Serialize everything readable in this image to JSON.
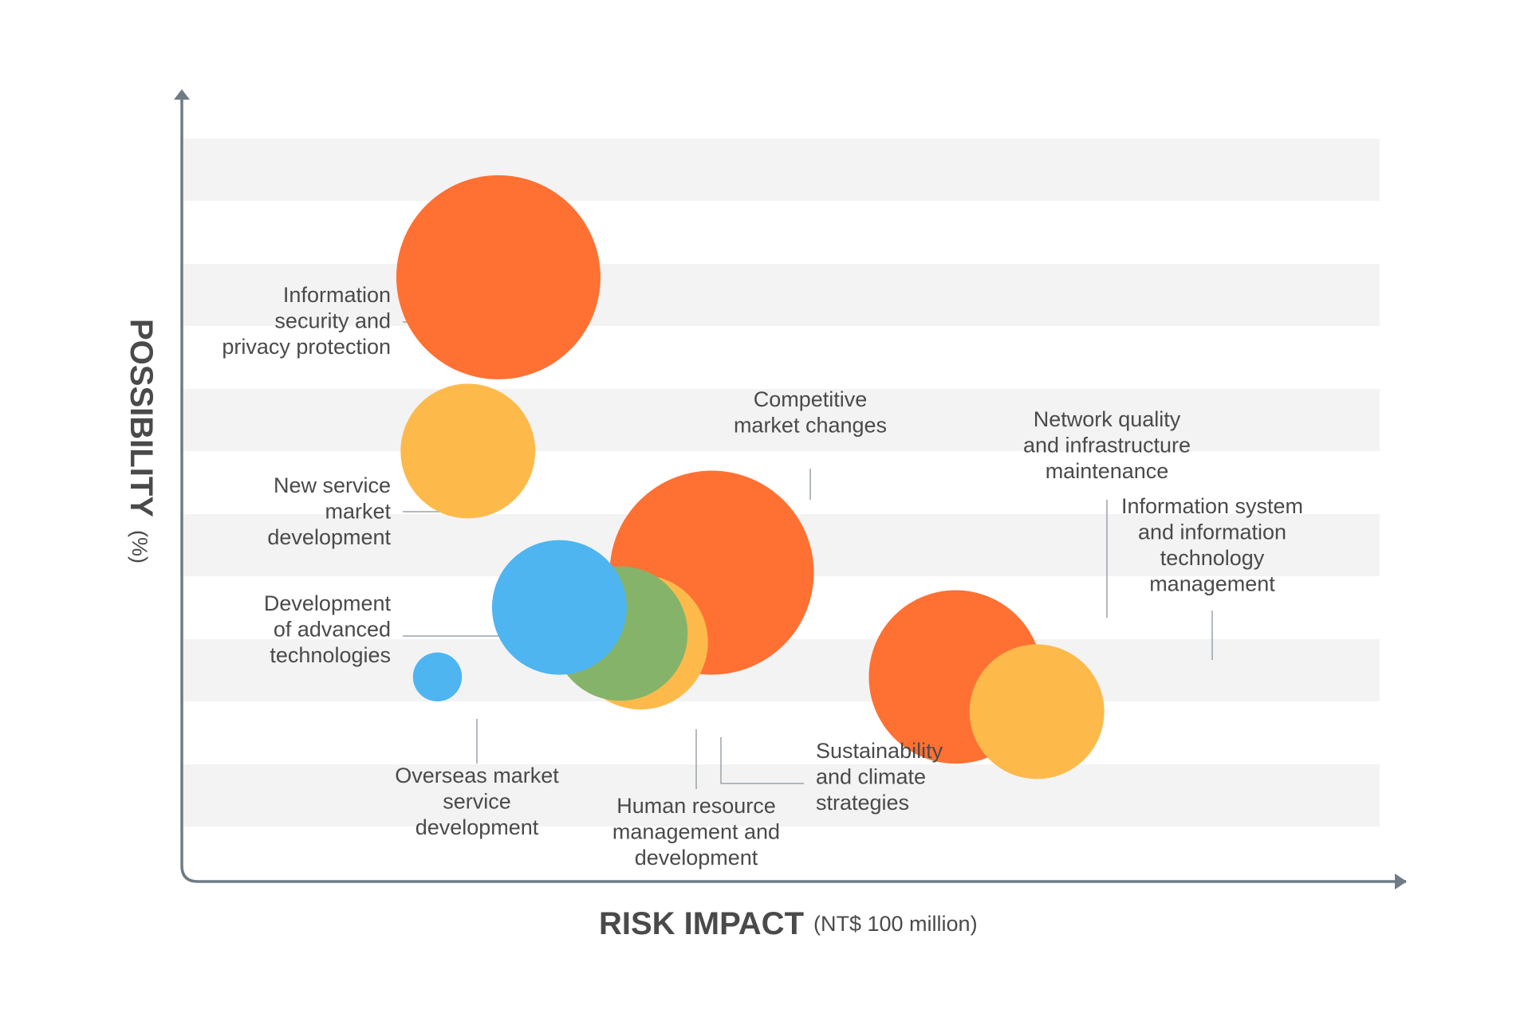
{
  "chart_data": {
    "type": "scatter",
    "title": "",
    "xlabel": "RISK IMPACT",
    "xlabel_unit": "(NT$ 100 million)",
    "ylabel": "POSSIBILITY",
    "ylabel_unit": "(%)",
    "grid": "alternating horizontal bands",
    "legend": "none",
    "series": [
      {
        "label": [
          "Information",
          "security and",
          "privacy protection"
        ],
        "x": 3.1,
        "y": 6.9,
        "size": 1.0,
        "color": "#FF7033"
      },
      {
        "label": [
          "New service",
          "market",
          "development"
        ],
        "x": 2.8,
        "y": 4.9,
        "size": 0.66,
        "color": "#FDBA4B"
      },
      {
        "label": [
          "Competitive",
          "market changes"
        ],
        "x": 5.2,
        "y": 3.5,
        "size": 1.0,
        "color": "#FF7033"
      },
      {
        "label": [
          "Sustainability",
          "and climate",
          "strategies"
        ],
        "x": 4.5,
        "y": 2.7,
        "size": 0.66,
        "color": "#FDBA4B"
      },
      {
        "label": [
          "Human resource",
          "management and",
          "development"
        ],
        "x": 4.3,
        "y": 2.8,
        "size": 0.66,
        "color": "#86B36A"
      },
      {
        "label": [
          "Development",
          "of advanced",
          "technologies"
        ],
        "x": 3.7,
        "y": 3.1,
        "size": 0.66,
        "color": "#4EB5F1"
      },
      {
        "label": [
          "Overseas market",
          "service",
          "development"
        ],
        "x": 2.5,
        "y": 2.3,
        "size": 0.24,
        "color": "#4EB5F1"
      },
      {
        "label": [
          "Network quality",
          "and infrastructure",
          "maintenance"
        ],
        "x": 7.6,
        "y": 2.3,
        "size": 0.85,
        "color": "#FF7033"
      },
      {
        "label": [
          "Information system",
          "and information",
          "technology",
          "management"
        ],
        "x": 8.4,
        "y": 1.9,
        "size": 0.66,
        "color": "#FDBA4B"
      }
    ]
  }
}
